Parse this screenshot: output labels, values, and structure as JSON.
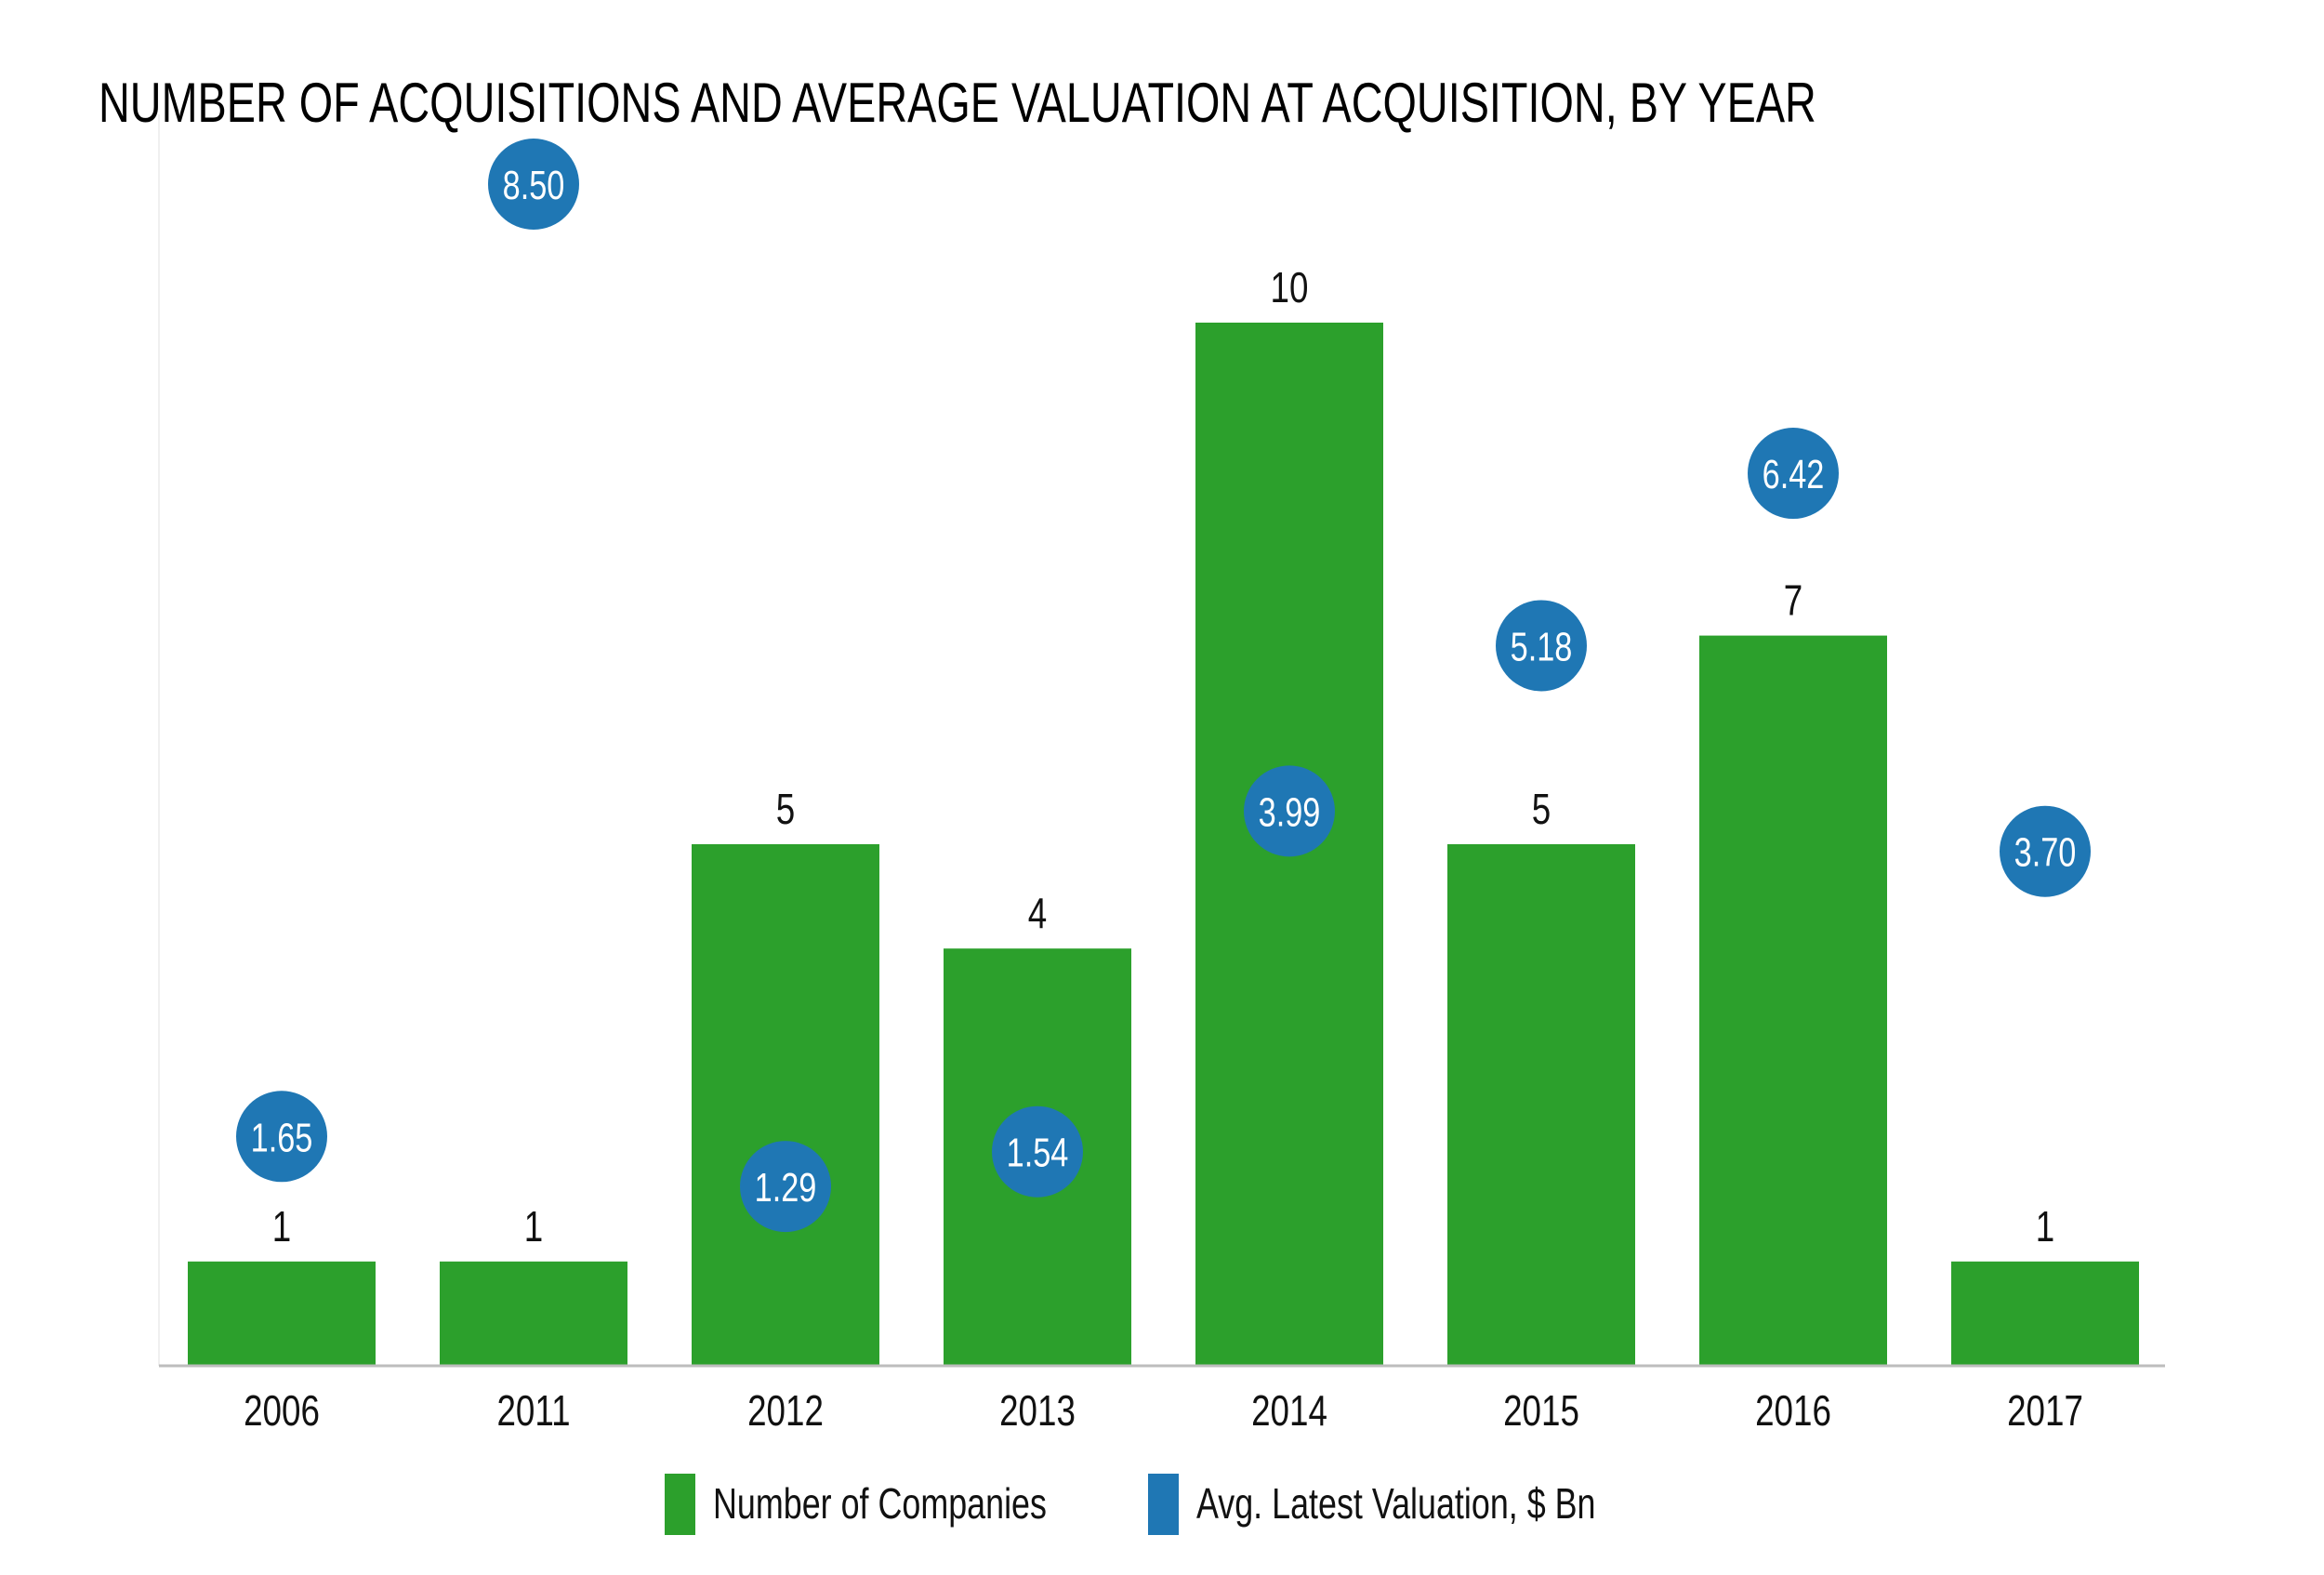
{
  "chart_data": {
    "type": "bar",
    "title": "NUMBER OF ACQUISITIONS AND AVERAGE VALUATION AT ACQUISITION, BY YEAR",
    "xlabel": "",
    "ylabel": "",
    "categories": [
      "2006",
      "2011",
      "2012",
      "2013",
      "2014",
      "2015",
      "2016",
      "2017"
    ],
    "series": [
      {
        "name": "Number of Companies",
        "kind": "bar",
        "color": "#2ca02c",
        "values": [
          1,
          1,
          5,
          4,
          10,
          5,
          7,
          1
        ],
        "labels": [
          "1",
          "1",
          "5",
          "4",
          "10",
          "5",
          "7",
          "1"
        ]
      },
      {
        "name": "Avg. Latest Valuation, $ Bn",
        "kind": "bubble",
        "color": "#1f77b4",
        "values": [
          1.65,
          8.5,
          1.29,
          1.54,
          3.99,
          5.18,
          6.42,
          3.7
        ],
        "labels": [
          "1.65",
          "8.50",
          "1.29",
          "1.54",
          "3.99",
          "5.18",
          "6.42",
          "3.70"
        ]
      }
    ],
    "ylim_count": [
      0,
      10
    ],
    "ylim_valuation": [
      0,
      8.5
    ],
    "grid": false,
    "y_axis_ticks_shown": false,
    "legend_position": "bottom-center"
  }
}
